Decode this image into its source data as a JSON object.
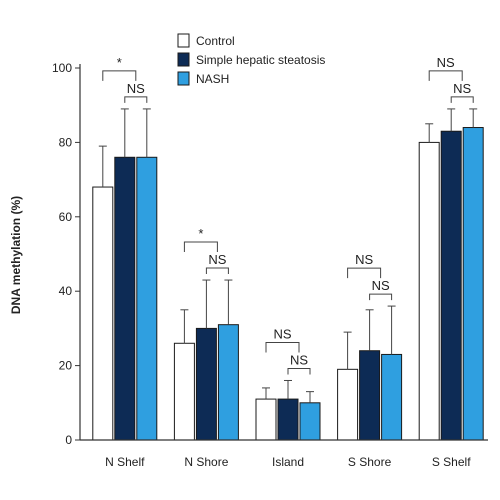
{
  "chart_data": {
    "type": "bar",
    "ylabel": "DNA methylation (%)",
    "ylim": [
      0,
      100
    ],
    "yticks": [
      0,
      20,
      40,
      60,
      80,
      100
    ],
    "categories": [
      "N Shelf",
      "N Shore",
      "Island",
      "S Shore",
      "S Shelf"
    ],
    "series": [
      {
        "name": "Control",
        "color": "#ffffff",
        "values": [
          68,
          26,
          11,
          19,
          80
        ],
        "errors": [
          11,
          9,
          3,
          10,
          5
        ]
      },
      {
        "name": "Simple hepatic steatosis",
        "color": "#0d2b55",
        "values": [
          76,
          30,
          11,
          24,
          83
        ],
        "errors": [
          13,
          13,
          5,
          11,
          6
        ]
      },
      {
        "name": "NASH",
        "color": "#2f9fe0",
        "values": [
          76,
          31,
          10,
          23,
          84
        ],
        "errors": [
          13,
          12,
          3,
          13,
          5
        ]
      }
    ],
    "legend_position": "top-center",
    "significance": [
      {
        "category": "N Shelf",
        "pair": "control-vs-groups",
        "label": "*"
      },
      {
        "category": "N Shelf",
        "pair": "between-groups",
        "label": "NS"
      },
      {
        "category": "N Shore",
        "pair": "control-vs-groups",
        "label": "*"
      },
      {
        "category": "N Shore",
        "pair": "between-groups",
        "label": "NS"
      },
      {
        "category": "Island",
        "pair": "control-vs-groups",
        "label": "NS"
      },
      {
        "category": "Island",
        "pair": "between-groups",
        "label": "NS"
      },
      {
        "category": "S Shore",
        "pair": "control-vs-groups",
        "label": "NS"
      },
      {
        "category": "S Shore",
        "pair": "between-groups",
        "label": "NS"
      },
      {
        "category": "S Shelf",
        "pair": "control-vs-groups",
        "label": "NS"
      },
      {
        "category": "S Shelf",
        "pair": "between-groups",
        "label": "NS"
      }
    ]
  }
}
